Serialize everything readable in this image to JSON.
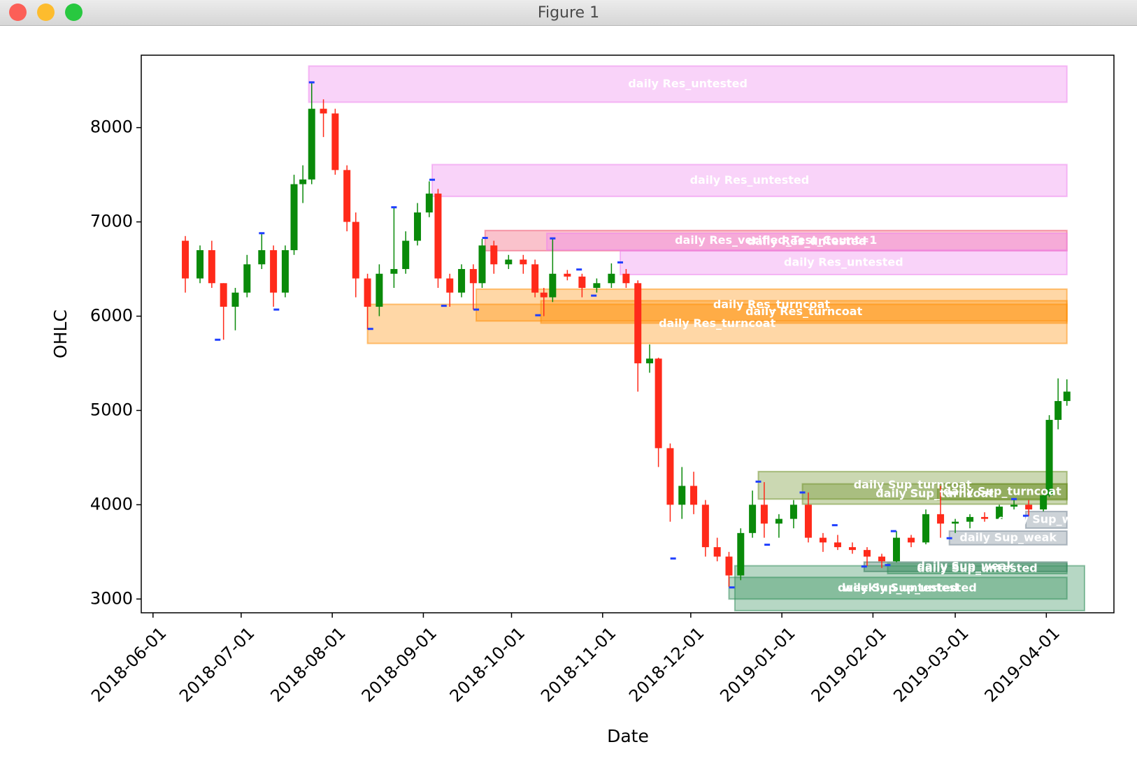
{
  "window_title": "Figure 1",
  "chart_data": {
    "type": "candlestick",
    "xlabel": "Date",
    "ylabel": "OHLC",
    "xlim": [
      "2018-05-28",
      "2019-04-24"
    ],
    "xticks": [
      "2018-06-01",
      "2018-07-01",
      "2018-08-01",
      "2018-09-01",
      "2018-10-01",
      "2018-11-01",
      "2018-12-01",
      "2019-01-01",
      "2019-02-01",
      "2019-03-01",
      "2019-04-01"
    ],
    "ylim": [
      2854,
      8768
    ],
    "yticks": [
      3000,
      4000,
      5000,
      6000,
      7000,
      8000
    ],
    "up_color": "#0a8a0a",
    "down_color": "#ff2a1a",
    "pivot_color": "#1f3fff",
    "x": [
      "2018-06-12",
      "2018-06-17",
      "2018-06-21",
      "2018-06-25",
      "2018-06-29",
      "2018-07-03",
      "2018-07-08",
      "2018-07-12",
      "2018-07-16",
      "2018-07-19",
      "2018-07-22",
      "2018-07-25",
      "2018-07-29",
      "2018-08-02",
      "2018-08-06",
      "2018-08-09",
      "2018-08-13",
      "2018-08-17",
      "2018-08-22",
      "2018-08-26",
      "2018-08-30",
      "2018-09-03",
      "2018-09-06",
      "2018-09-10",
      "2018-09-14",
      "2018-09-18",
      "2018-09-21",
      "2018-09-25",
      "2018-09-30",
      "2018-10-05",
      "2018-10-09",
      "2018-10-12",
      "2018-10-15",
      "2018-10-20",
      "2018-10-25",
      "2018-10-30",
      "2018-11-04",
      "2018-11-09",
      "2018-11-13",
      "2018-11-17",
      "2018-11-20",
      "2018-11-24",
      "2018-11-28",
      "2018-12-02",
      "2018-12-06",
      "2018-12-10",
      "2018-12-14",
      "2018-12-18",
      "2018-12-22",
      "2018-12-26",
      "2018-12-31",
      "2019-01-05",
      "2019-01-10",
      "2019-01-15",
      "2019-01-20",
      "2019-01-25",
      "2019-01-30",
      "2019-02-04",
      "2019-02-09",
      "2019-02-14",
      "2019-02-19",
      "2019-02-24",
      "2019-03-01",
      "2019-03-06",
      "2019-03-11",
      "2019-03-16",
      "2019-03-21",
      "2019-03-26",
      "2019-03-31",
      "2019-04-02",
      "2019-04-05",
      "2019-04-08"
    ],
    "open": [
      6800,
      6400,
      6700,
      6350,
      6100,
      6250,
      6550,
      6700,
      6250,
      6700,
      7400,
      7450,
      8200,
      8150,
      7550,
      7000,
      6400,
      6100,
      6450,
      6500,
      6800,
      7100,
      7300,
      6400,
      6250,
      6500,
      6350,
      6750,
      6550,
      6600,
      6550,
      6250,
      6200,
      6450,
      6420,
      6300,
      6350,
      6450,
      6350,
      5500,
      5550,
      4600,
      4000,
      4200,
      4000,
      3550,
      3450,
      3250,
      3700,
      4000,
      3800,
      3850,
      4000,
      3650,
      3600,
      3550,
      3520,
      3450,
      3400,
      3650,
      3600,
      3900,
      3800,
      3820,
      3870,
      3850,
      3980,
      4000,
      3950,
      4100,
      4900,
      5100
    ],
    "high": [
      6850,
      6750,
      6800,
      6350,
      6300,
      6650,
      6870,
      6750,
      6750,
      7500,
      7600,
      8480,
      8300,
      8200,
      7600,
      7100,
      6450,
      6550,
      7150,
      6900,
      7200,
      7430,
      7350,
      6450,
      6550,
      6550,
      6820,
      6800,
      6650,
      6650,
      6600,
      6300,
      6820,
      6490,
      6450,
      6400,
      6560,
      6500,
      6380,
      5700,
      5560,
      4650,
      4400,
      4350,
      4050,
      3650,
      3500,
      3750,
      4150,
      4240,
      3900,
      4050,
      4130,
      3700,
      3680,
      3600,
      3550,
      3480,
      3720,
      3680,
      3950,
      4200,
      3850,
      3900,
      3920,
      4000,
      4070,
      4050,
      4150,
      4950,
      5340,
      5330
    ],
    "low": [
      6250,
      6350,
      6300,
      5750,
      5850,
      6200,
      6500,
      6100,
      6200,
      6650,
      7200,
      7400,
      7900,
      7500,
      6900,
      6200,
      5860,
      6000,
      6300,
      6450,
      6750,
      7050,
      6300,
      6100,
      6200,
      6070,
      6300,
      6450,
      6500,
      6450,
      6200,
      6000,
      6150,
      6380,
      6200,
      6250,
      6300,
      6300,
      5200,
      5400,
      4400,
      3820,
      3850,
      3900,
      3450,
      3400,
      3130,
      3200,
      3650,
      3650,
      3650,
      3750,
      3600,
      3500,
      3520,
      3480,
      3350,
      3330,
      3390,
      3550,
      3580,
      3650,
      3700,
      3750,
      3820,
      3840,
      3950,
      3880,
      3930,
      4080,
      4800,
      5050
    ],
    "close": [
      6400,
      6700,
      6350,
      6100,
      6250,
      6550,
      6700,
      6250,
      6700,
      7400,
      7450,
      8200,
      8150,
      7550,
      7000,
      6400,
      6100,
      6450,
      6500,
      6800,
      7100,
      7300,
      6400,
      6250,
      6500,
      6350,
      6750,
      6550,
      6600,
      6550,
      6250,
      6200,
      6450,
      6420,
      6300,
      6350,
      6450,
      6350,
      5500,
      5550,
      4600,
      4000,
      4200,
      4000,
      3550,
      3450,
      3250,
      3700,
      4000,
      3800,
      3850,
      4000,
      3650,
      3600,
      3550,
      3520,
      3450,
      3400,
      3650,
      3600,
      3900,
      3800,
      3820,
      3870,
      3850,
      3980,
      4000,
      3950,
      4100,
      4900,
      5100,
      5200
    ],
    "zones": [
      {
        "label": "daily Res_untested",
        "x0": "2018-07-24",
        "x1": "2019-04-08",
        "y0": 8269,
        "y1": 8653,
        "color": "#ee82ee"
      },
      {
        "label": "daily Res_untested",
        "x0": "2018-09-04",
        "x1": "2019-04-08",
        "y0": 7270,
        "y1": 7608,
        "color": "#ee82ee"
      },
      {
        "label": "daily Res_verified_Test_Count=1",
        "x0": "2018-09-22",
        "x1": "2019-04-08",
        "y0": 6694,
        "y1": 6909,
        "color": "#f0506e"
      },
      {
        "label": "daily Res_untested",
        "x0": "2018-10-13",
        "x1": "2019-04-08",
        "y0": 6702,
        "y1": 6879,
        "color": "#ee82ee"
      },
      {
        "label": "daily Res_untested",
        "x0": "2018-11-07",
        "x1": "2019-04-08",
        "y0": 6441,
        "y1": 6694,
        "color": "#ee82ee"
      },
      {
        "label": "daily Res_turncoat",
        "x0": "2018-09-19",
        "x1": "2019-04-08",
        "y0": 5949,
        "y1": 6287,
        "color": "#ff8c00"
      },
      {
        "label": "daily Res_turncoat",
        "x0": "2018-10-11",
        "x1": "2019-04-08",
        "y0": 5926,
        "y1": 6164,
        "color": "#ff8c00"
      },
      {
        "label": "daily Res_turncoat",
        "x0": "2018-08-13",
        "x1": "2019-04-08",
        "y0": 5711,
        "y1": 6126,
        "color": "#ff8c00"
      },
      {
        "label": "daily Sup_turncoat",
        "x0": "2018-12-24",
        "x1": "2019-04-08",
        "y0": 4060,
        "y1": 4352,
        "color": "#6b8e23"
      },
      {
        "label": "daily Sup_turncoat",
        "x0": "2019-01-08",
        "x1": "2019-04-08",
        "y0": 4006,
        "y1": 4221,
        "color": "#6b8e23"
      },
      {
        "label": "daily Sup_turncoat",
        "x0": "2019-02-23",
        "x1": "2019-04-08",
        "y0": 4052,
        "y1": 4221,
        "color": "#6b8e23"
      },
      {
        "label": "daily Sup_weak",
        "x0": "2019-03-25",
        "x1": "2019-04-08",
        "y0": 3752,
        "y1": 3929,
        "color": "#708090"
      },
      {
        "label": "daily Sup_weak",
        "x0": "2019-02-27",
        "x1": "2019-04-08",
        "y0": 3575,
        "y1": 3721,
        "color": "#708090"
      },
      {
        "label": "daily Sup_weak",
        "x0": "2019-01-29",
        "x1": "2019-04-08",
        "y0": 3292,
        "y1": 3392,
        "color": "#2e6b57"
      },
      {
        "label": "daily Sup_untested",
        "x0": "2019-02-06",
        "x1": "2019-04-08",
        "y0": 3269,
        "y1": 3376,
        "color": "#2e8b57"
      },
      {
        "label": "daily Sup_untested",
        "x0": "2018-12-14",
        "x1": "2019-04-08",
        "y0": 3000,
        "y1": 3230,
        "color": "#2e8b57"
      },
      {
        "label": "weekly Sup_untested",
        "x0": "2018-12-16",
        "x1": "2019-04-14",
        "y0": 2877,
        "y1": 3353,
        "color": "#2e8b57"
      }
    ],
    "pivots": {
      "x": [
        "2018-07-25",
        "2018-06-23",
        "2018-07-08",
        "2018-07-13",
        "2018-08-14",
        "2018-08-22",
        "2018-09-04",
        "2018-09-08",
        "2018-09-19",
        "2018-09-22",
        "2018-10-10",
        "2018-10-15",
        "2018-10-24",
        "2018-10-29",
        "2018-11-07",
        "2018-11-25",
        "2018-12-15",
        "2018-12-24",
        "2018-12-27",
        "2019-01-08",
        "2019-01-19",
        "2019-01-29",
        "2019-02-06",
        "2019-02-08",
        "2019-02-27",
        "2019-03-21",
        "2019-03-25"
      ],
      "values": [
        8480,
        5750,
        6880,
        6070,
        5865,
        7155,
        7447,
        6110,
        6070,
        6830,
        6010,
        6825,
        6495,
        6218,
        6570,
        3430,
        3123,
        4245,
        3576,
        4130,
        3783,
        3345,
        3360,
        3720,
        3645,
        4060,
        3883
      ]
    }
  }
}
